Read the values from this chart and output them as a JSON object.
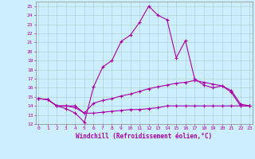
{
  "title": "",
  "xlabel": "Windchill (Refroidissement éolien,°C)",
  "background_color": "#cceeff",
  "line_color": "#aa00aa",
  "x_ticks": [
    0,
    1,
    2,
    3,
    4,
    5,
    6,
    7,
    8,
    9,
    10,
    11,
    12,
    13,
    14,
    15,
    16,
    17,
    18,
    19,
    20,
    21,
    22,
    23
  ],
  "ylim": [
    12,
    25.5
  ],
  "xlim": [
    -0.3,
    23.3
  ],
  "yticks": [
    12,
    13,
    14,
    15,
    16,
    17,
    18,
    19,
    20,
    21,
    22,
    23,
    24,
    25
  ],
  "series1_x": [
    0,
    1,
    2,
    3,
    4,
    5,
    6,
    7,
    8,
    9,
    10,
    11,
    12,
    13,
    14,
    15,
    16,
    17,
    18,
    19,
    20,
    21,
    22,
    23
  ],
  "series1_y": [
    14.8,
    14.7,
    14.0,
    13.7,
    13.2,
    12.2,
    16.1,
    18.3,
    19.0,
    21.1,
    21.8,
    23.2,
    25.0,
    24.0,
    23.5,
    19.3,
    21.2,
    17.0,
    16.3,
    16.0,
    16.2,
    15.5,
    14.0,
    14.0
  ],
  "series2_x": [
    0,
    1,
    2,
    3,
    4,
    5,
    6,
    7,
    8,
    9,
    10,
    11,
    12,
    13,
    14,
    15,
    16,
    17,
    18,
    19,
    20,
    21,
    22,
    23
  ],
  "series2_y": [
    14.8,
    14.7,
    14.0,
    14.0,
    14.0,
    13.2,
    14.3,
    14.6,
    14.8,
    15.1,
    15.3,
    15.6,
    15.9,
    16.1,
    16.3,
    16.5,
    16.6,
    16.8,
    16.6,
    16.4,
    16.2,
    15.7,
    14.2,
    14.0
  ],
  "series3_x": [
    0,
    1,
    2,
    3,
    4,
    5,
    6,
    7,
    8,
    9,
    10,
    11,
    12,
    13,
    14,
    15,
    16,
    17,
    18,
    19,
    20,
    21,
    22,
    23
  ],
  "series3_y": [
    14.8,
    14.7,
    14.0,
    14.0,
    13.8,
    13.2,
    13.2,
    13.3,
    13.4,
    13.5,
    13.6,
    13.6,
    13.7,
    13.8,
    14.0,
    14.0,
    14.0,
    14.0,
    14.0,
    14.0,
    14.0,
    14.0,
    14.0,
    14.0
  ]
}
